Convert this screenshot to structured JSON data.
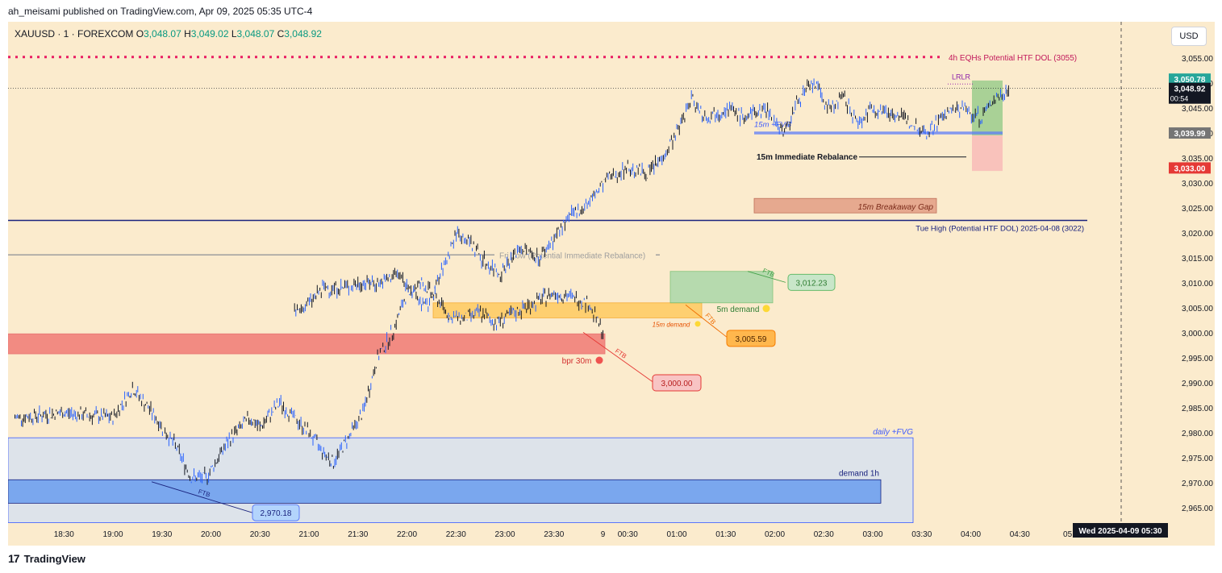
{
  "header": {
    "attribution": "ah_meisami published on TradingView.com, Apr 09, 2025 05:35 UTC-4"
  },
  "legend": {
    "symbol": "XAUUSD · 1 · FOREXCOM",
    "o_label": "O",
    "o": "3,048.07",
    "h_label": "H",
    "h": "3,049.02",
    "l_label": "L",
    "l": "3,048.07",
    "c_label": "C",
    "c": "3,048.92"
  },
  "currency_button": "USD",
  "footer": {
    "brand": "TradingView",
    "logo_glyph": "17"
  },
  "colors": {
    "background": "#fbebcd",
    "up": "#2962ff",
    "dol_dotted": "#e91e63",
    "tue_high": "#1a237e",
    "fri_low": "#9e9e9e",
    "bpr": "#f28b82",
    "orange_demand": "#ffcc66",
    "green_zone": "#a5d6a7",
    "breakaway": "#e6a98f",
    "daily_fvg": "#dde3ea",
    "demand_1h": "#7aa7ee"
  },
  "chart_data": {
    "type": "candlestick",
    "symbol": "XAUUSD",
    "interval": "1",
    "y_ticks": [
      3055,
      3050,
      3045,
      3040,
      3035,
      3030,
      3025,
      3020,
      3015,
      3010,
      3005,
      3000,
      2995,
      2990,
      2985,
      2980,
      2975,
      2970,
      2965
    ],
    "y_tick_labels": [
      "3,055.00",
      "3,050.00",
      "3,045.00",
      "3,040.00",
      "3,035.00",
      "3,030.00",
      "3,025.00",
      "3,020.00",
      "3,015.00",
      "3,010.00",
      "3,005.00",
      "3,000.00",
      "2,995.00",
      "2,990.00",
      "2,985.00",
      "2,980.00",
      "2,975.00",
      "2,970.00",
      "2,965.00"
    ],
    "ylim": [
      2962,
      3060
    ],
    "x_ticks": [
      {
        "t": "18:30",
        "h": -8.5
      },
      {
        "t": "19:00",
        "h": -8.0
      },
      {
        "t": "19:30",
        "h": -7.5
      },
      {
        "t": "20:00",
        "h": -7.0
      },
      {
        "t": "20:30",
        "h": -6.5
      },
      {
        "t": "21:00",
        "h": -6.0
      },
      {
        "t": "21:30",
        "h": -5.5
      },
      {
        "t": "22:00",
        "h": -5.0
      },
      {
        "t": "22:30",
        "h": -4.5
      },
      {
        "t": "23:00",
        "h": -4.0
      },
      {
        "t": "23:30",
        "h": -3.5
      },
      {
        "t": "9",
        "h": -3.0
      },
      {
        "t": "00:30",
        "h": 0.5
      },
      {
        "t": "01:00",
        "h": 1.0
      },
      {
        "t": "01:30",
        "h": 1.5
      },
      {
        "t": "02:00",
        "h": 2.0
      },
      {
        "t": "02:30",
        "h": 2.5
      },
      {
        "t": "03:00",
        "h": 3.0
      },
      {
        "t": "03:30",
        "h": 3.5
      },
      {
        "t": "04:00",
        "h": 4.0
      },
      {
        "t": "04:30",
        "h": 4.5
      },
      {
        "t": "05:",
        "h": 5.0
      }
    ],
    "time_cursor_label": "Wed 2025-04-09   05:30",
    "price_path": [
      [
        -9.0,
        2983
      ],
      [
        -8.5,
        2984
      ],
      [
        -8.0,
        2983
      ],
      [
        -7.8,
        2989
      ],
      [
        -7.6,
        2984
      ],
      [
        -7.35,
        2977
      ],
      [
        -7.2,
        2971
      ],
      [
        -7.05,
        2971
      ],
      [
        -6.8,
        2979
      ],
      [
        -6.6,
        2983
      ],
      [
        -6.5,
        2981
      ],
      [
        -6.3,
        2986
      ],
      [
        -6.15,
        2983
      ],
      [
        -6.0,
        2980
      ],
      [
        -5.85,
        2976
      ],
      [
        -5.75,
        2974
      ],
      [
        -5.6,
        2979
      ],
      [
        -5.45,
        2984
      ],
      [
        -5.3,
        2995
      ],
      [
        -5.15,
        3000
      ],
      [
        -5.0,
        3008
      ],
      [
        -4.85,
        3010
      ],
      [
        -4.7,
        3007
      ],
      [
        -4.55,
        3003
      ],
      [
        -4.4,
        3003
      ],
      [
        -4.25,
        3004
      ],
      [
        -4.1,
        3002
      ],
      [
        -3.9,
        3004
      ],
      [
        -3.7,
        3006
      ],
      [
        -3.5,
        3008
      ],
      [
        -3.3,
        3007
      ],
      [
        -3.15,
        3006
      ],
      [
        -3.0,
        3000
      ],
      [
        -2.9,
        3004
      ],
      [
        -2.75,
        3006
      ],
      [
        -2.6,
        3009
      ],
      [
        -2.4,
        3009
      ],
      [
        -2.2,
        3010
      ],
      [
        -2.0,
        3010
      ],
      [
        -1.85,
        3012
      ],
      [
        -1.7,
        3008
      ],
      [
        -1.55,
        3005
      ],
      [
        -1.4,
        3012
      ],
      [
        -1.25,
        3020
      ],
      [
        -1.1,
        3018
      ],
      [
        -0.95,
        3014
      ],
      [
        -0.8,
        3012
      ],
      [
        -0.6,
        3017
      ],
      [
        -0.4,
        3015
      ],
      [
        -0.25,
        3019
      ],
      [
        -0.1,
        3023
      ],
      [
        0.1,
        3026
      ],
      [
        0.3,
        3031
      ],
      [
        0.5,
        3033
      ],
      [
        0.7,
        3032
      ],
      [
        0.85,
        3035
      ],
      [
        1.0,
        3040
      ],
      [
        1.15,
        3047
      ],
      [
        1.3,
        3043
      ],
      [
        1.5,
        3045
      ],
      [
        1.7,
        3043
      ],
      [
        1.9,
        3045
      ],
      [
        2.1,
        3040
      ],
      [
        2.25,
        3047
      ],
      [
        2.4,
        3050
      ],
      [
        2.55,
        3045
      ],
      [
        2.7,
        3047
      ],
      [
        2.85,
        3042
      ],
      [
        3.0,
        3045
      ],
      [
        3.2,
        3044
      ],
      [
        3.4,
        3042
      ],
      [
        3.55,
        3040
      ],
      [
        3.75,
        3044
      ],
      [
        3.9,
        3045
      ],
      [
        4.1,
        3043
      ],
      [
        4.25,
        3047
      ],
      [
        4.4,
        3048.9
      ]
    ],
    "annotations": {
      "eqh": "4h EQHs Potential HTF DOL (3055)",
      "lrlr": "LRLR",
      "fvg15m": "15m +FVG",
      "rebalance": "15m Immediate Rebalance",
      "breakaway": "15m Breakaway Gap",
      "tue_high": "Tue High (Potential HTF DOL)  2025-04-08 (3022)",
      "fri_low": "Fri Low (Potential Immediate Rebalance)",
      "demand5m": "5m demand",
      "demand15m": "15m demand",
      "bpr": "bpr 30m",
      "ftb": "FTB",
      "daily_fvg": "daily +FVG",
      "demand1h": "demand 1h",
      "lbl_3012": "3,012.23",
      "lbl_3005": "3,005.59",
      "lbl_3000": "3,000.00",
      "lbl_2970": "2,970.18",
      "price_3050": "3,050.78",
      "price_now": "3,048.92",
      "countdown": "00:54",
      "price_3039": "3,039.99",
      "price_3033": "3,033.00"
    }
  }
}
